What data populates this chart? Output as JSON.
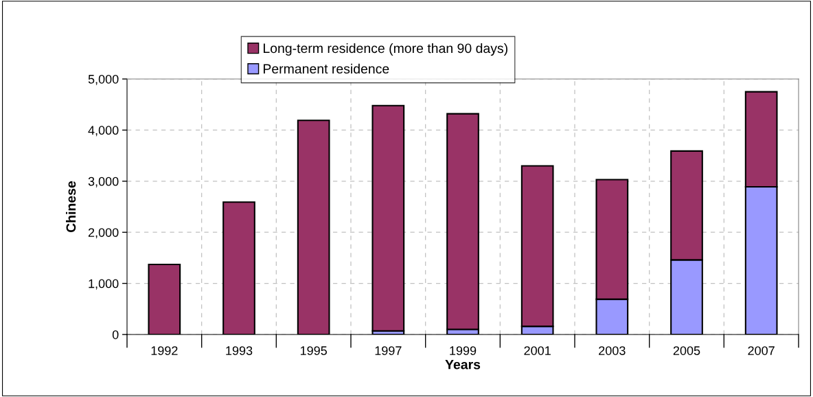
{
  "chart_data": {
    "type": "bar",
    "stacked": true,
    "xlabel": "Years",
    "ylabel": "Chinese",
    "categories": [
      "1992",
      "1993",
      "1995",
      "1997",
      "1999",
      "2001",
      "2003",
      "2005",
      "2007"
    ],
    "series": [
      {
        "name": "Permanent residence",
        "color": "#9999ff",
        "values": [
          null,
          null,
          null,
          70,
          100,
          160,
          690,
          1460,
          2890
        ]
      },
      {
        "name": "Long-term residence (more than 90 days)",
        "color": "#993366",
        "values": [
          1370,
          2590,
          4190,
          4410,
          4220,
          3140,
          2340,
          2130,
          1860
        ]
      }
    ],
    "ylim": [
      0,
      5000
    ],
    "yticks": [
      {
        "value": 0,
        "label": "0"
      },
      {
        "value": 1000,
        "label": "1,000"
      },
      {
        "value": 2000,
        "label": "2,000"
      },
      {
        "value": 3000,
        "label": "3,000"
      },
      {
        "value": 4000,
        "label": "4,000"
      },
      {
        "value": 5000,
        "label": "5,000"
      }
    ],
    "grid": true,
    "legend": "top"
  }
}
